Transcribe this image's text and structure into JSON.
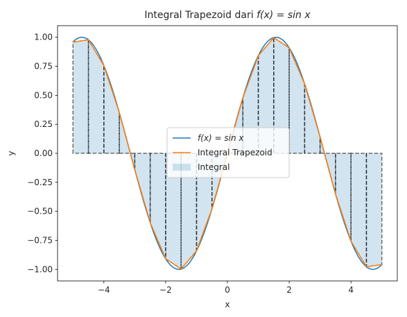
{
  "chart_data": {
    "type": "line",
    "title": "Integral Trapezoid dari f(x) = sin x",
    "title_prefix": "Integral Trapezoid dari ",
    "title_math": "f(x) = sin x",
    "xlabel": "x",
    "ylabel": "y",
    "xlim": [
      -5.5,
      5.5
    ],
    "ylim": [
      -1.1,
      1.1
    ],
    "x_ticks": [
      -4,
      -2,
      0,
      2,
      4
    ],
    "x_tick_labels": [
      "−4",
      "−2",
      "0",
      "2",
      "4"
    ],
    "y_ticks": [
      1.0,
      0.75,
      0.5,
      0.25,
      0.0,
      -0.25,
      -0.5,
      -0.75,
      -1.0
    ],
    "y_tick_labels": [
      "1.00",
      "0.75",
      "0.50",
      "0.25",
      "0.00",
      "−0.25",
      "−0.50",
      "−0.75",
      "−1.00"
    ],
    "grid": false,
    "legend_position": "center",
    "function": "sin",
    "x_range": [
      -5,
      5
    ],
    "trapezoid_nodes": [
      -5,
      -4.5,
      -4,
      -3.5,
      -3,
      -2.5,
      -2,
      -1.5,
      -1,
      -0.5,
      0,
      0.5,
      1,
      1.5,
      2,
      2.5,
      3,
      3.5,
      4,
      4.5,
      5
    ],
    "trapezoid_values": [
      0.959,
      0.978,
      0.757,
      0.351,
      -0.141,
      -0.598,
      -0.909,
      -0.997,
      -0.841,
      -0.479,
      0.0,
      0.479,
      0.841,
      0.997,
      0.909,
      0.598,
      0.141,
      -0.351,
      -0.757,
      -0.978,
      -0.959
    ],
    "series": [
      {
        "name": "f(x) = sin x",
        "label_main": "f(x) = sin ",
        "label_var": "x",
        "color": "#1f77b4",
        "kind": "line"
      },
      {
        "name": "Integral Trapezoid",
        "color": "#ff7f0e",
        "kind": "line"
      },
      {
        "name": "Integral",
        "color": "#1f77b4",
        "alpha": 0.2,
        "kind": "fill"
      }
    ]
  }
}
